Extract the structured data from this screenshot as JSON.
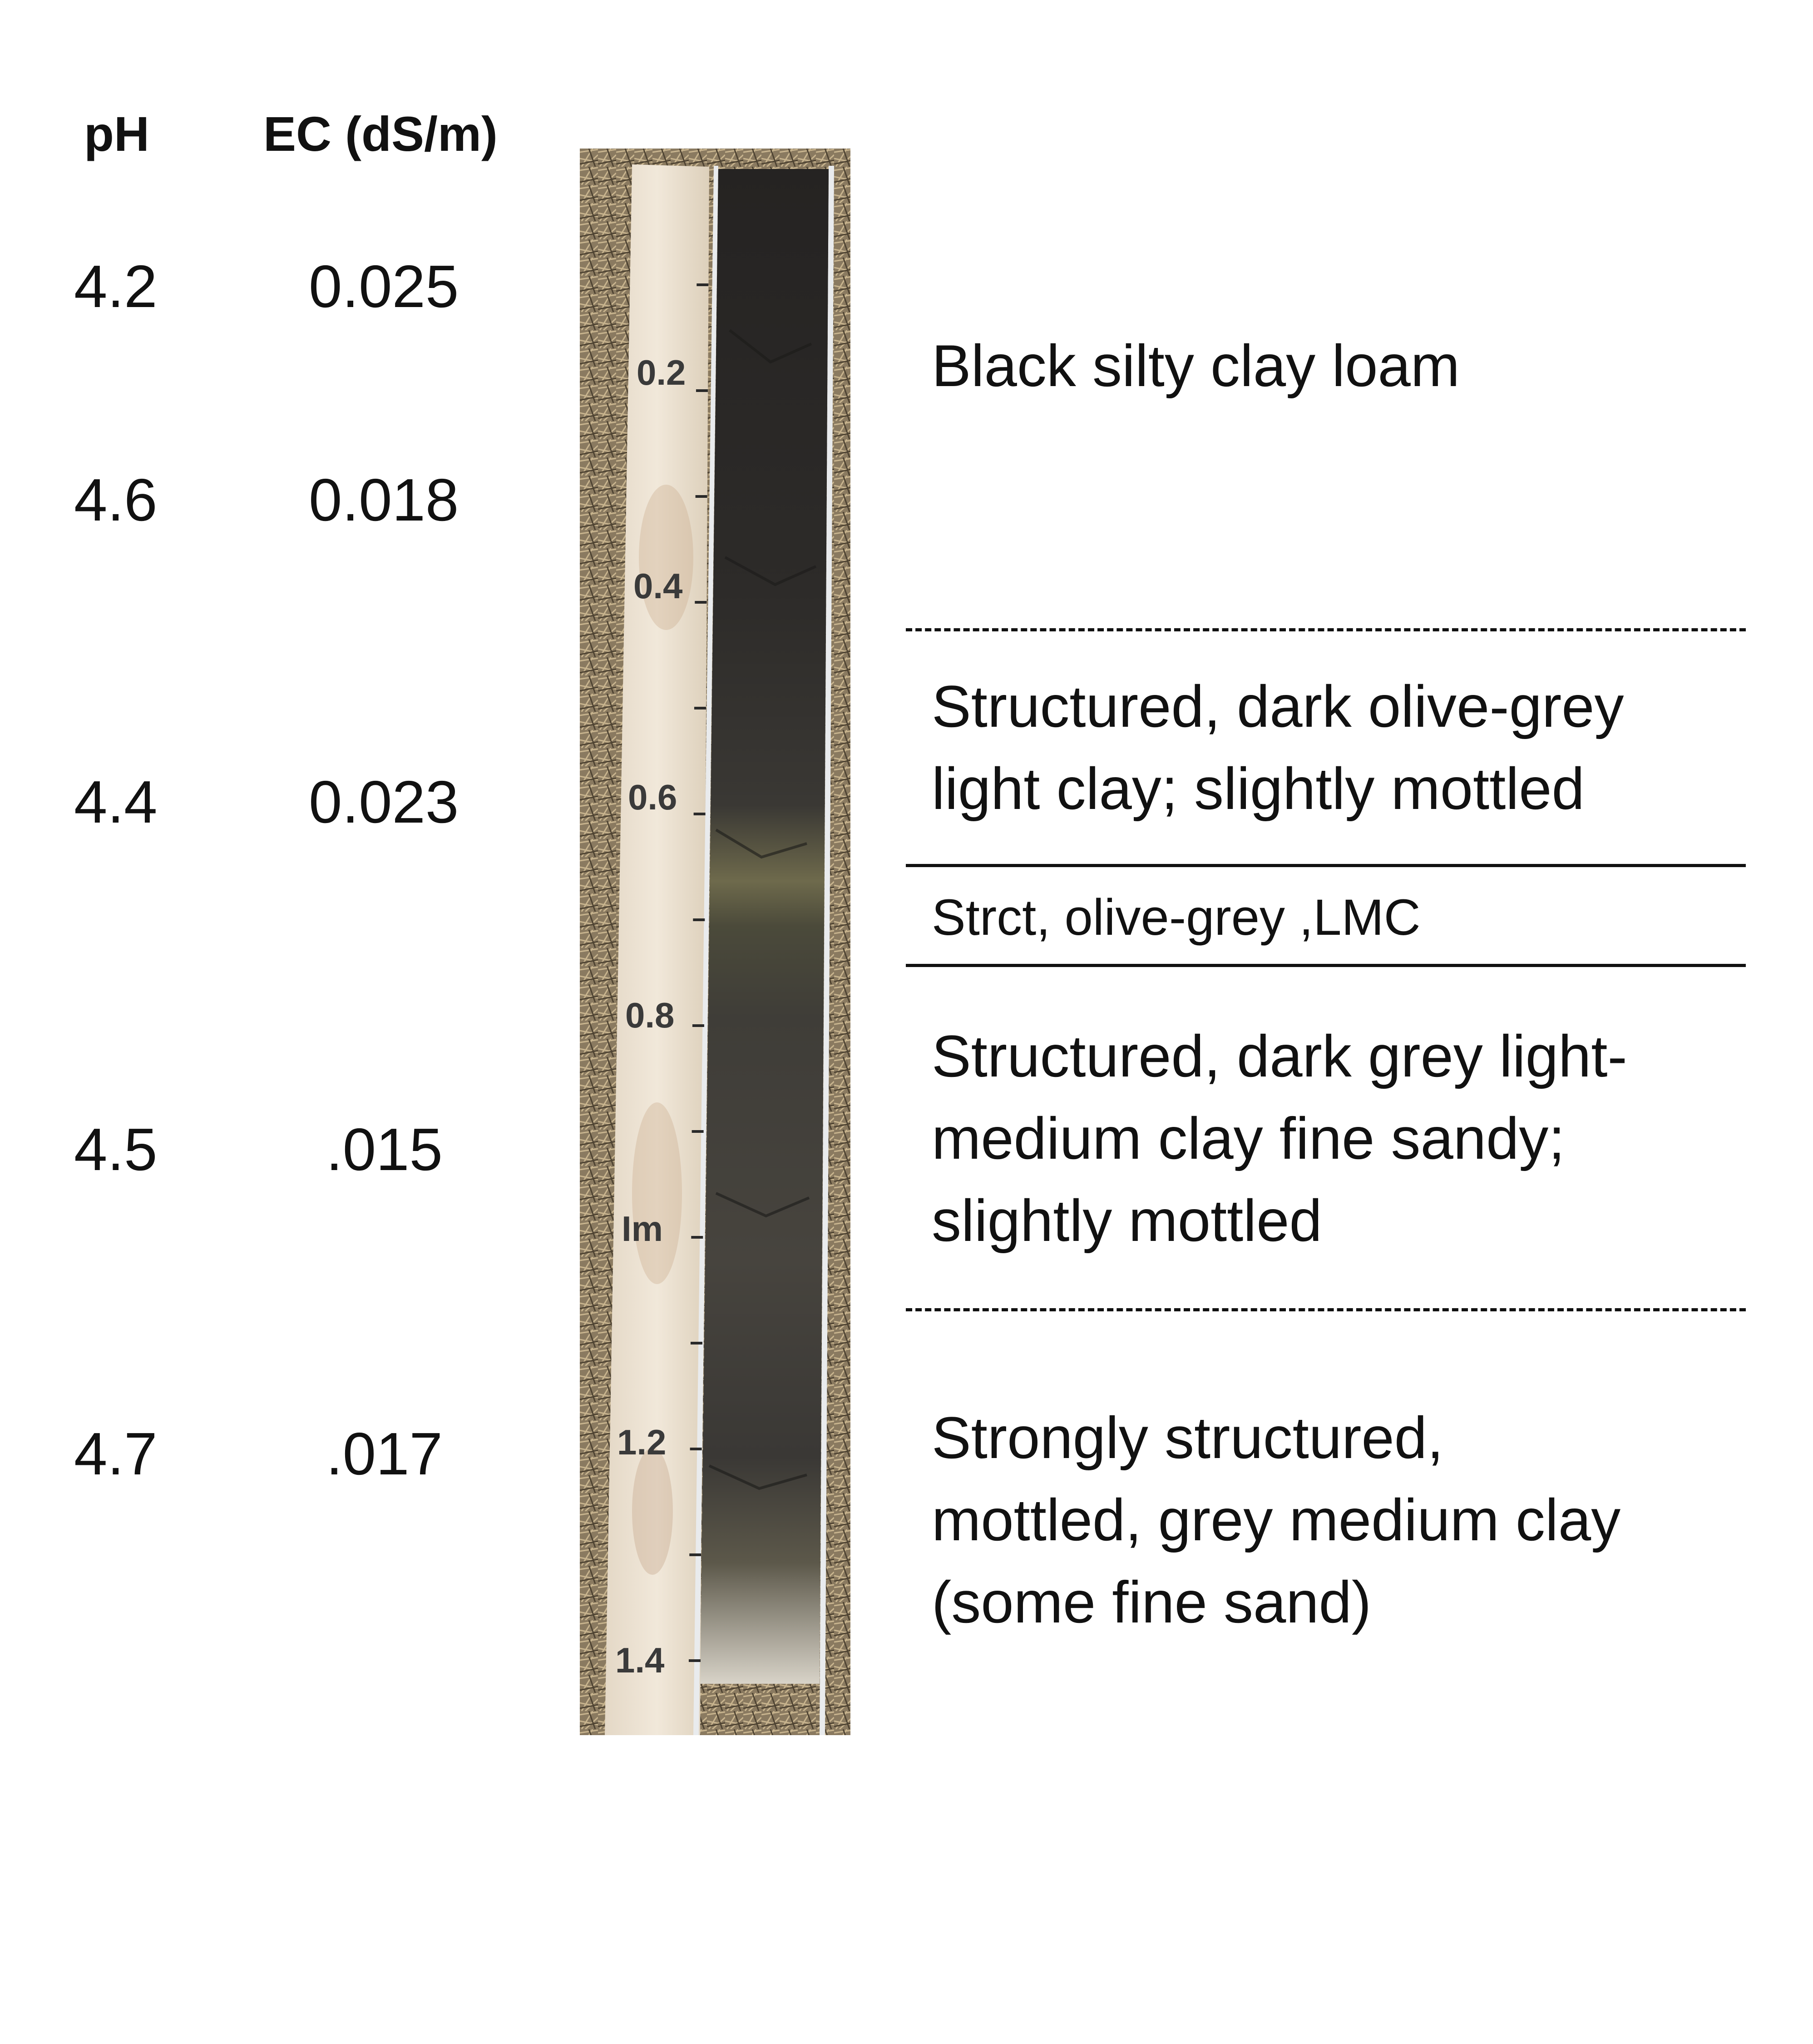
{
  "headers": {
    "ph": "pH",
    "ec": "EC (dS/m)"
  },
  "samples": [
    {
      "ph": "4.2",
      "ec": "0.025"
    },
    {
      "ph": "4.6",
      "ec": "0.018"
    },
    {
      "ph": "4.4",
      "ec": "0.023"
    },
    {
      "ph": "4.5",
      "ec": ".015"
    },
    {
      "ph": "4.7",
      "ec": ".017"
    }
  ],
  "ruler_labels": [
    "0.2",
    "0.4",
    "0.6",
    "0.8",
    "Im",
    "1.2",
    "1.4"
  ],
  "horizons": [
    {
      "lines": [
        "Black silty clay loam"
      ]
    },
    {
      "lines": [
        "Structured, dark olive-grey",
        "light clay; slightly mottled"
      ]
    },
    {
      "lines": [
        "Strct, olive-grey ,LMC"
      ]
    },
    {
      "lines": [
        "Structured, dark grey light-",
        "medium clay fine sandy;",
        "slightly mottled"
      ]
    },
    {
      "lines": [
        "Strongly structured,",
        "mottled, grey medium clay",
        "(some fine sand)"
      ]
    }
  ],
  "colors": {
    "text": "#111111",
    "background": "#ffffff",
    "soil": "#35312d",
    "ruler": "#ece2d2",
    "ground": "#8a7a60"
  }
}
